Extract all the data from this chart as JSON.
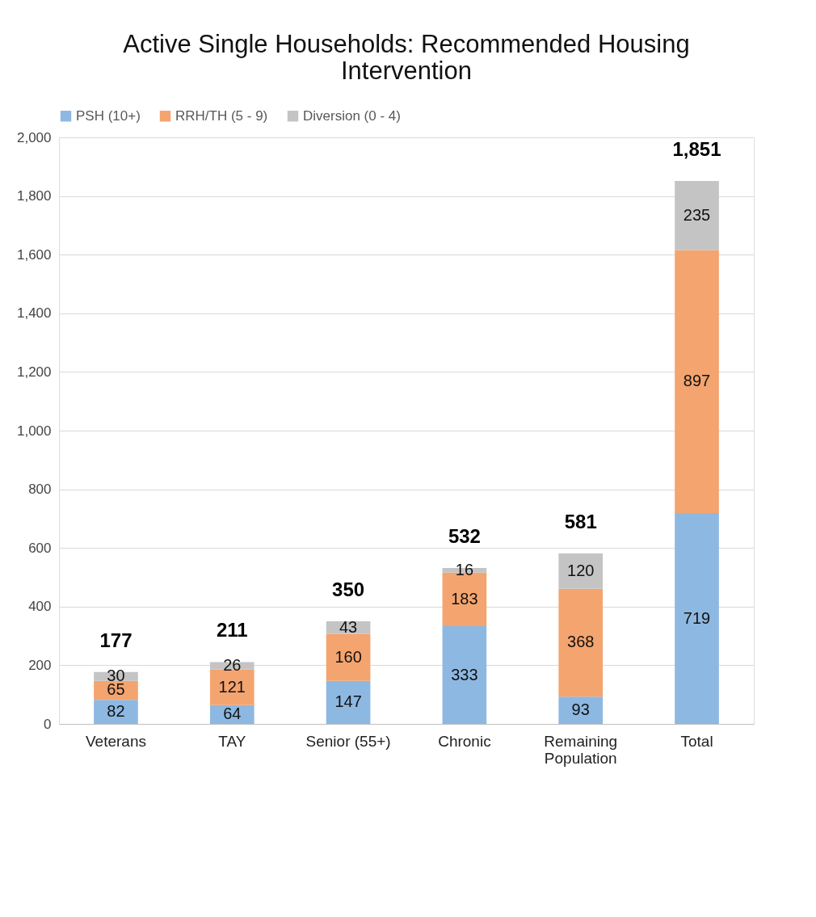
{
  "chart_data": {
    "type": "bar",
    "title": "Active Single Households:  Recommended Housing Intervention",
    "categories": [
      "Veterans",
      "TAY",
      "Senior (55+)",
      "Chronic",
      "Remaining Population",
      "Total"
    ],
    "series": [
      {
        "name": "PSH (10+)",
        "color": "#8db8e2",
        "values": [
          82,
          64,
          147,
          333,
          93,
          719
        ]
      },
      {
        "name": "RRH/TH (5 - 9)",
        "color": "#f4a46e",
        "values": [
          65,
          121,
          160,
          183,
          368,
          897
        ]
      },
      {
        "name": "Diversion (0 - 4)",
        "color": "#c4c4c4",
        "values": [
          30,
          26,
          43,
          16,
          120,
          235
        ]
      }
    ],
    "stacked": true,
    "data_labels": true,
    "totals": [
      "177",
      "211",
      "350",
      "532",
      "581",
      "1,851"
    ],
    "ylim": [
      0,
      2000
    ],
    "yticks": [
      0,
      200,
      400,
      600,
      800,
      {
        "value": 1000,
        "label": "1,000"
      },
      {
        "value": 1200,
        "label": "1,200"
      },
      {
        "value": 1400,
        "label": "1,400"
      },
      {
        "value": 1600,
        "label": "1,600"
      },
      {
        "value": 1800,
        "label": "1,800"
      },
      {
        "value": 2000,
        "label": "2,000"
      }
    ],
    "grid": "y",
    "legend": "top"
  }
}
